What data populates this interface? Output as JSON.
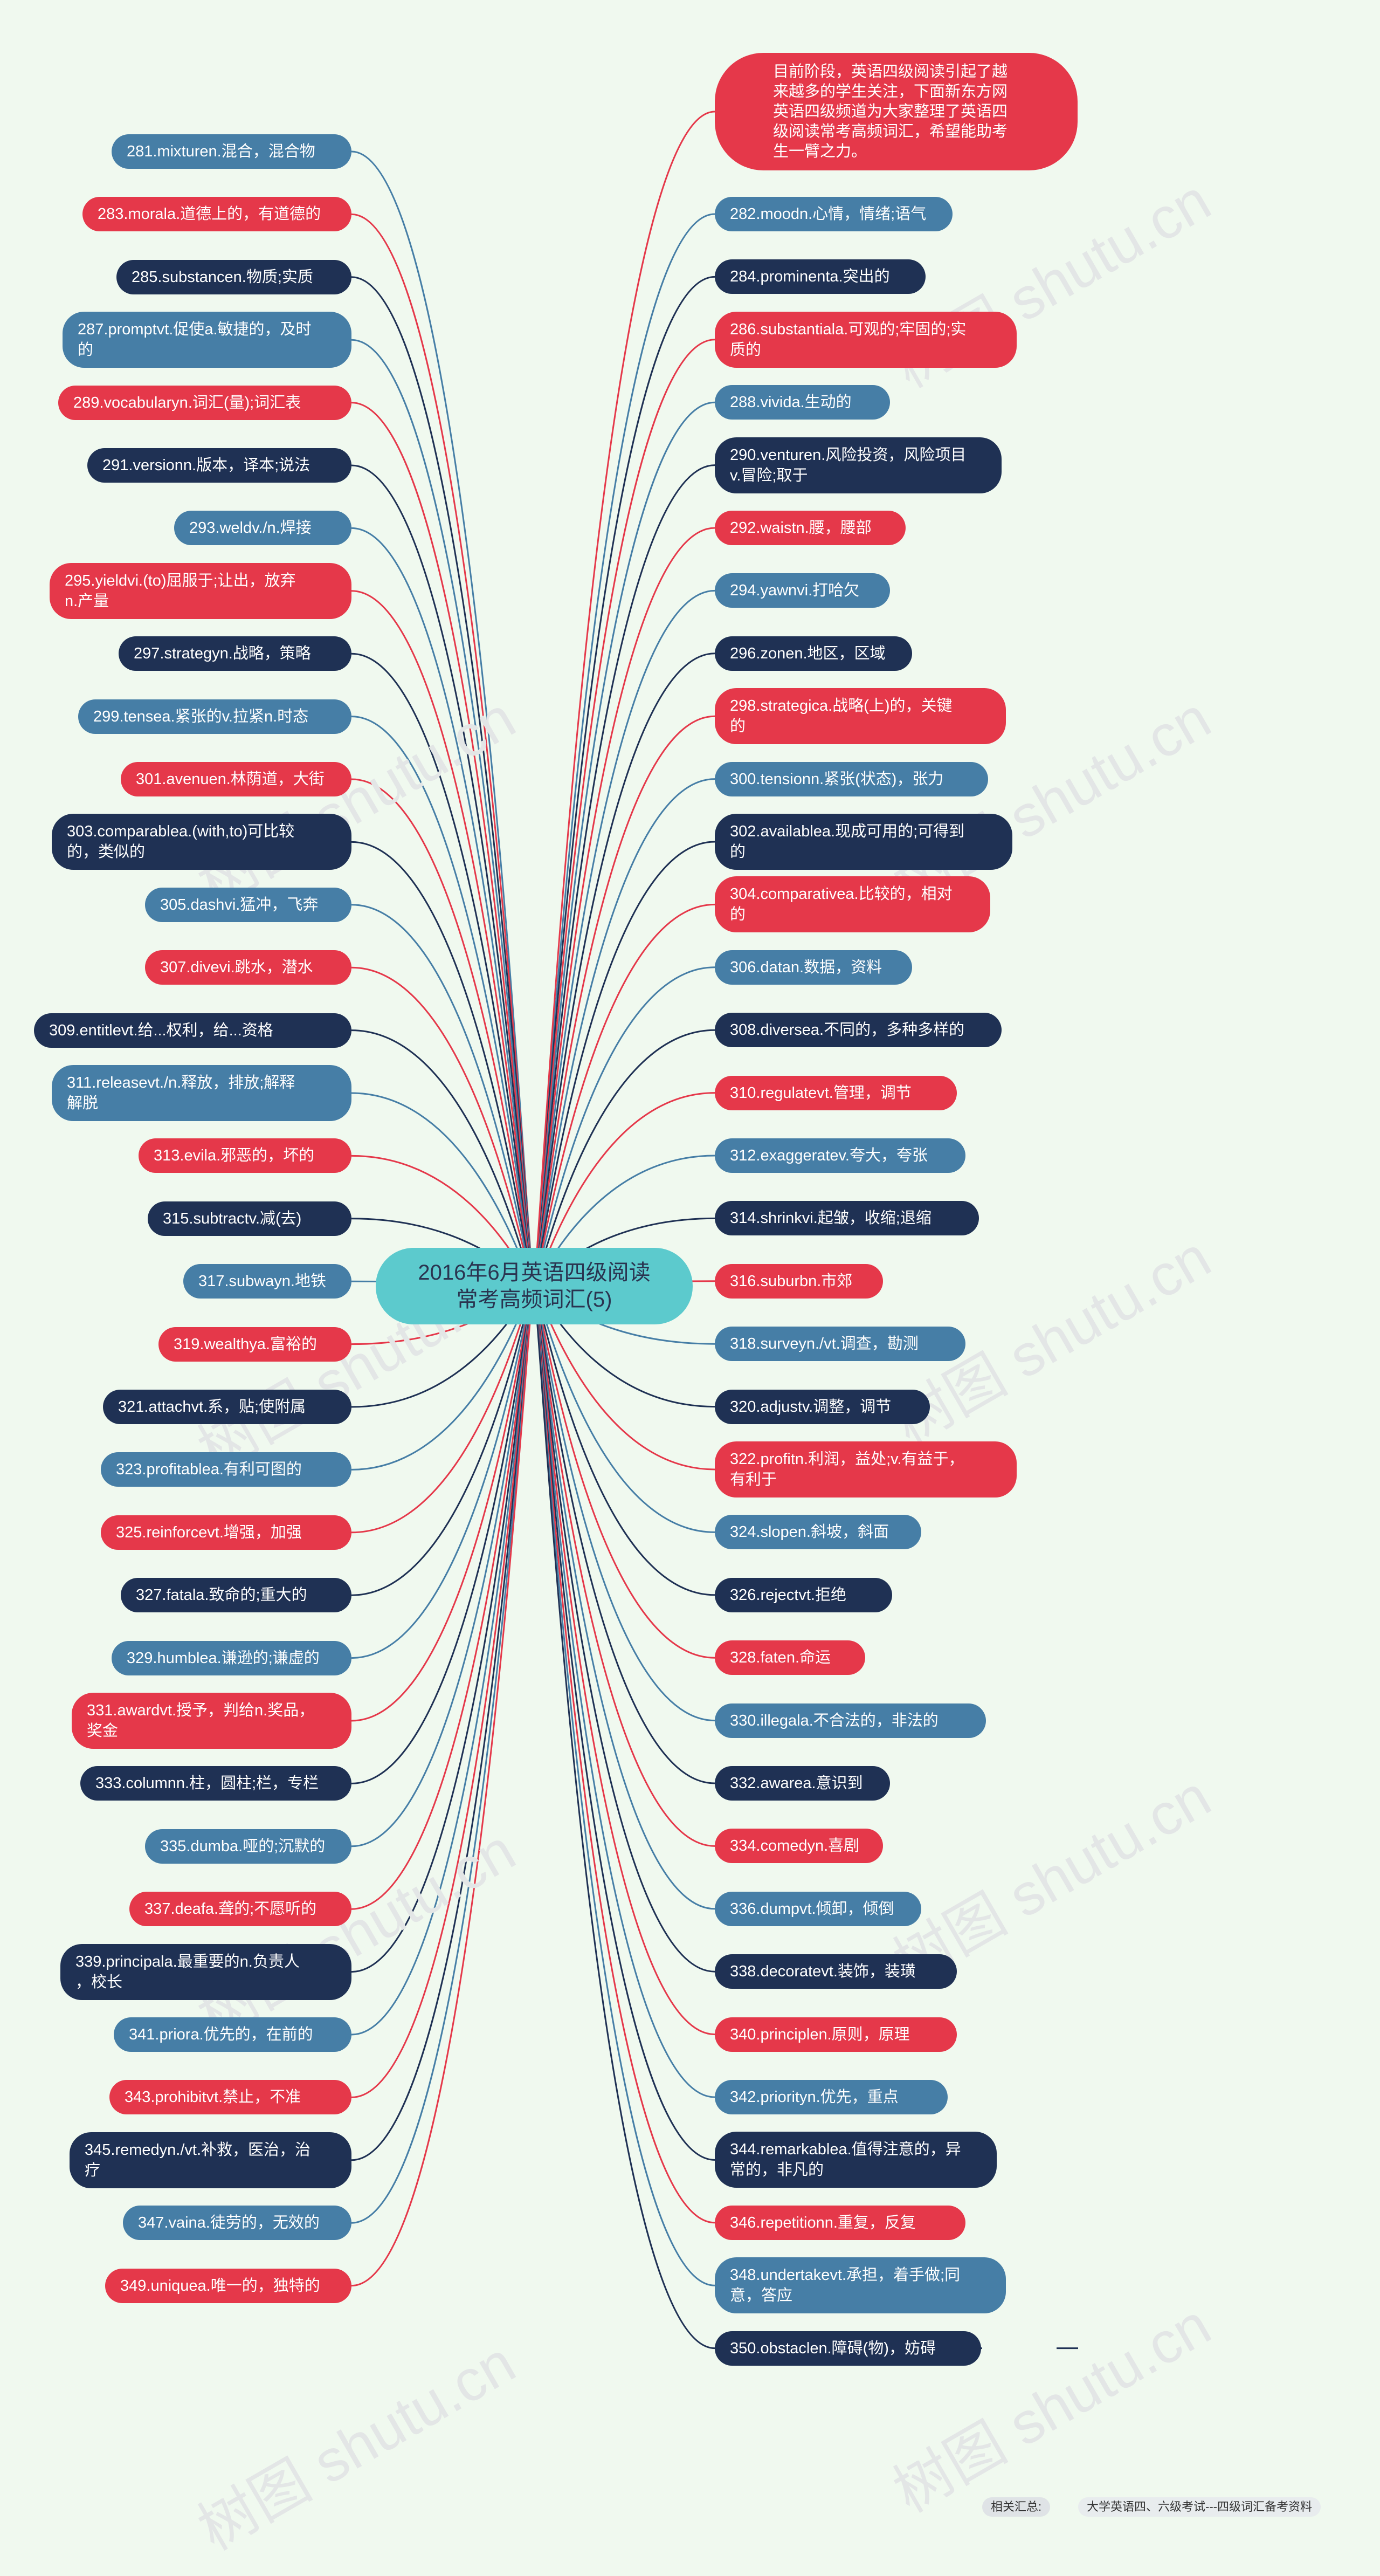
{
  "root": {
    "line1": "2016年6月英语四级阅读",
    "line2": "常考高频词汇(5)"
  },
  "intro": {
    "line1": "目前阶段，英语四级阅读引起了越",
    "line2": "来越多的学生关注，下面新东方网",
    "line3": "英语四级频道为大家整理了英语四",
    "line4": "级阅读常考高频词汇，希望能助考",
    "line5": "生一臂之力。"
  },
  "watermark": "树图 shutu.cn",
  "left": [
    {
      "l1": "281.mixturen.混合，混合物",
      "l2": "",
      "color": "#467ea6"
    },
    {
      "l1": "283.morala.道德上的，有道德的",
      "l2": "",
      "color": "#e5384a"
    },
    {
      "l1": "285.substancen.物质;实质",
      "l2": "",
      "color": "#1f3154"
    },
    {
      "l1": "287.promptvt.促使a.敏捷的，及时",
      "l2": "的",
      "color": "#467ea6"
    },
    {
      "l1": "289.vocabularyn.词汇(量);词汇表",
      "l2": "",
      "color": "#e5384a"
    },
    {
      "l1": "291.versionn.版本，译本;说法",
      "l2": "",
      "color": "#1f3154"
    },
    {
      "l1": "293.weldv./n.焊接",
      "l2": "",
      "color": "#467ea6"
    },
    {
      "l1": "295.yieldvi.(to)屈服于;让出，放弃",
      "l2": "n.产量",
      "color": "#e5384a"
    },
    {
      "l1": "297.strategyn.战略，策略",
      "l2": "",
      "color": "#1f3154"
    },
    {
      "l1": "299.tensea.紧张的v.拉紧n.时态",
      "l2": "",
      "color": "#467ea6"
    },
    {
      "l1": "301.avenuen.林荫道，大街",
      "l2": "",
      "color": "#e5384a"
    },
    {
      "l1": "303.comparablea.(with,to)可比较",
      "l2": "的，类似的",
      "color": "#1f3154"
    },
    {
      "l1": "305.dashvi.猛冲，飞奔",
      "l2": "",
      "color": "#467ea6"
    },
    {
      "l1": "307.divevi.跳水，潜水",
      "l2": "",
      "color": "#e5384a"
    },
    {
      "l1": "309.entitlevt.给...权利，给...资格",
      "l2": "",
      "color": "#1f3154"
    },
    {
      "l1": "311.releasevt./n.释放，排放;解释",
      "l2": "解脱",
      "color": "#467ea6"
    },
    {
      "l1": "313.evila.邪恶的，坏的",
      "l2": "",
      "color": "#e5384a"
    },
    {
      "l1": "315.subtractv.减(去)",
      "l2": "",
      "color": "#1f3154"
    },
    {
      "l1": "317.subwayn.地铁",
      "l2": "",
      "color": "#467ea6"
    },
    {
      "l1": "319.wealthya.富裕的",
      "l2": "",
      "color": "#e5384a"
    },
    {
      "l1": "321.attachvt.系，贴;使附属",
      "l2": "",
      "color": "#1f3154"
    },
    {
      "l1": "323.profitablea.有利可图的",
      "l2": "",
      "color": "#467ea6"
    },
    {
      "l1": "325.reinforcevt.增强，加强",
      "l2": "",
      "color": "#e5384a"
    },
    {
      "l1": "327.fatala.致命的;重大的",
      "l2": "",
      "color": "#1f3154"
    },
    {
      "l1": "329.humblea.谦逊的;谦虚的",
      "l2": "",
      "color": "#467ea6"
    },
    {
      "l1": "331.awardvt.授予，判给n.奖品，",
      "l2": "奖金",
      "color": "#e5384a"
    },
    {
      "l1": "333.columnn.柱，圆柱;栏，专栏",
      "l2": "",
      "color": "#1f3154"
    },
    {
      "l1": "335.dumba.哑的;沉默的",
      "l2": "",
      "color": "#467ea6"
    },
    {
      "l1": "337.deafa.聋的;不愿听的",
      "l2": "",
      "color": "#e5384a"
    },
    {
      "l1": "339.principala.最重要的n.负责人",
      "l2": "，校长",
      "color": "#1f3154"
    },
    {
      "l1": "341.priora.优先的，在前的",
      "l2": "",
      "color": "#467ea6"
    },
    {
      "l1": "343.prohibitvt.禁止，不准",
      "l2": "",
      "color": "#e5384a"
    },
    {
      "l1": "345.remedyn./vt.补救，医治，治",
      "l2": "疗",
      "color": "#1f3154"
    },
    {
      "l1": "347.vaina.徒劳的，无效的",
      "l2": "",
      "color": "#467ea6"
    },
    {
      "l1": "349.uniquea.唯一的，独特的",
      "l2": "",
      "color": "#e5384a"
    }
  ],
  "right": [
    {
      "l1": "282.moodn.心情，情绪;语气",
      "l2": "",
      "color": "#467ea6"
    },
    {
      "l1": "284.prominenta.突出的",
      "l2": "",
      "color": "#1f3154"
    },
    {
      "l1": "286.substantiala.可观的;牢固的;实",
      "l2": "质的",
      "color": "#e5384a"
    },
    {
      "l1": "288.vivida.生动的",
      "l2": "",
      "color": "#467ea6"
    },
    {
      "l1": "290.venturen.风险投资，风险项目",
      "l2": "v.冒险;取于",
      "color": "#1f3154"
    },
    {
      "l1": "292.waistn.腰，腰部",
      "l2": "",
      "color": "#e5384a"
    },
    {
      "l1": "294.yawnvi.打哈欠",
      "l2": "",
      "color": "#467ea6"
    },
    {
      "l1": "296.zonen.地区，区域",
      "l2": "",
      "color": "#1f3154"
    },
    {
      "l1": "298.strategica.战略(上)的，关键",
      "l2": "的",
      "color": "#e5384a"
    },
    {
      "l1": "300.tensionn.紧张(状态)，张力",
      "l2": "",
      "color": "#467ea6"
    },
    {
      "l1": "302.availablea.现成可用的;可得到",
      "l2": "的",
      "color": "#1f3154"
    },
    {
      "l1": "304.comparativea.比较的，相对",
      "l2": "的",
      "color": "#e5384a"
    },
    {
      "l1": "306.datan.数据，资料",
      "l2": "",
      "color": "#467ea6"
    },
    {
      "l1": "308.diversea.不同的，多种多样的",
      "l2": "",
      "color": "#1f3154"
    },
    {
      "l1": "310.regulatevt.管理，调节",
      "l2": "",
      "color": "#e5384a"
    },
    {
      "l1": "312.exaggeratev.夸大，夸张",
      "l2": "",
      "color": "#467ea6"
    },
    {
      "l1": "314.shrinkvi.起皱，收缩;退缩",
      "l2": "",
      "color": "#1f3154"
    },
    {
      "l1": "316.suburbn.市郊",
      "l2": "",
      "color": "#e5384a"
    },
    {
      "l1": "318.surveyn./vt.调查，勘测",
      "l2": "",
      "color": "#467ea6"
    },
    {
      "l1": "320.adjustv.调整，调节",
      "l2": "",
      "color": "#1f3154"
    },
    {
      "l1": "322.profitn.利润，益处;v.有益于，",
      "l2": "有利于",
      "color": "#e5384a"
    },
    {
      "l1": "324.slopen.斜坡，斜面",
      "l2": "",
      "color": "#467ea6"
    },
    {
      "l1": "326.rejectvt.拒绝",
      "l2": "",
      "color": "#1f3154"
    },
    {
      "l1": "328.faten.命运",
      "l2": "",
      "color": "#e5384a"
    },
    {
      "l1": "330.illegala.不合法的，非法的",
      "l2": "",
      "color": "#467ea6"
    },
    {
      "l1": "332.awarea.意识到",
      "l2": "",
      "color": "#1f3154"
    },
    {
      "l1": "334.comedyn.喜剧",
      "l2": "",
      "color": "#e5384a"
    },
    {
      "l1": "336.dumpvt.倾卸，倾倒",
      "l2": "",
      "color": "#467ea6"
    },
    {
      "l1": "338.decoratevt.装饰，装璜",
      "l2": "",
      "color": "#1f3154"
    },
    {
      "l1": "340.principlen.原则，原理",
      "l2": "",
      "color": "#e5384a"
    },
    {
      "l1": "342.priorityn.优先，重点",
      "l2": "",
      "color": "#467ea6"
    },
    {
      "l1": "344.remarkablea.值得注意的，异",
      "l2": "常的，非凡的",
      "color": "#1f3154"
    },
    {
      "l1": "346.repetitionn.重复，反复",
      "l2": "",
      "color": "#e5384a"
    },
    {
      "l1": "348.undertakevt.承担，着手做;同",
      "l2": "意，答应",
      "color": "#467ea6"
    },
    {
      "l1": "350.obstaclen.障碍(物)，妨碍",
      "l2": "",
      "color": "#1f3154"
    }
  ],
  "related": {
    "label": "相关汇总:",
    "value": "大学英语四、六级考试---四级词汇备考资料"
  }
}
